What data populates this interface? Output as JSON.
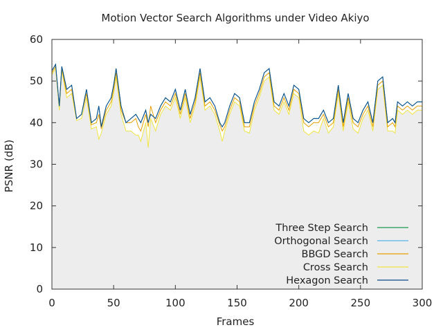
{
  "chart_data": {
    "type": "line",
    "title": "Motion Vector Search Algorithms under Video Akiyo",
    "xlabel": "Frames",
    "ylabel": "PSNR (dB)",
    "xlim": [
      0,
      300
    ],
    "ylim": [
      0,
      60
    ],
    "x_ticks": [
      "0",
      "50",
      "100",
      "150",
      "200",
      "250",
      "300"
    ],
    "y_ticks": [
      "0",
      "10",
      "20",
      "30",
      "40",
      "50",
      "60"
    ],
    "grid": false,
    "legend_position": "bottom-right",
    "x": [
      0,
      3,
      6,
      8,
      12,
      16,
      20,
      24,
      28,
      32,
      36,
      38,
      40,
      44,
      48,
      50,
      52,
      56,
      60,
      64,
      68,
      70,
      72,
      76,
      78,
      80,
      84,
      88,
      92,
      96,
      100,
      104,
      108,
      112,
      116,
      120,
      124,
      128,
      132,
      136,
      138,
      140,
      144,
      148,
      152,
      156,
      160,
      164,
      168,
      172,
      176,
      180,
      184,
      188,
      192,
      196,
      200,
      204,
      208,
      212,
      216,
      220,
      224,
      228,
      232,
      236,
      240,
      244,
      248,
      252,
      256,
      260,
      264,
      268,
      272,
      276,
      278,
      280,
      284,
      288,
      292,
      296,
      300
    ],
    "series": [
      {
        "name": "Three Step Search",
        "color": "#1a9850",
        "values": [
          52.5,
          54,
          44,
          53.5,
          48,
          49,
          41,
          42,
          48,
          40,
          41,
          44,
          39,
          44,
          46,
          49,
          53,
          44,
          40,
          41,
          42,
          41,
          40,
          43,
          40,
          42,
          41,
          44,
          46,
          45,
          48,
          43,
          48,
          42,
          46,
          53,
          45,
          46,
          44,
          40,
          39,
          40,
          44,
          47,
          46,
          40,
          40,
          45,
          48,
          52,
          53,
          45,
          44,
          47,
          44,
          49,
          48,
          41,
          40,
          41,
          41,
          43,
          40,
          41,
          49,
          40,
          47,
          41,
          40,
          43,
          45,
          40,
          50,
          51,
          40,
          41,
          40,
          45,
          44,
          45,
          44,
          45,
          45
        ]
      },
      {
        "name": "Orthogonal Search",
        "color": "#56b4e9",
        "values": [
          52.5,
          54,
          44,
          53.5,
          48,
          49,
          41,
          42,
          48,
          40,
          41,
          44,
          39,
          44,
          46,
          49,
          53,
          44,
          40,
          41,
          42,
          41,
          40,
          43,
          40,
          42,
          41,
          44,
          46,
          45,
          48,
          43,
          48,
          42,
          46,
          53,
          45,
          46,
          44,
          40,
          39,
          40,
          44,
          47,
          46,
          40,
          40,
          45,
          48,
          52,
          53,
          45,
          44,
          47,
          44,
          49,
          48,
          41,
          40,
          41,
          41,
          43,
          40,
          41,
          49,
          40,
          47,
          41,
          40,
          43,
          45,
          40,
          50,
          51,
          40,
          41,
          40,
          45,
          44,
          45,
          44,
          45,
          45
        ]
      },
      {
        "name": "BBGD Search",
        "color": "#e69f00",
        "values": [
          52,
          53.5,
          44,
          53,
          47,
          48,
          41,
          42,
          47,
          39.5,
          40,
          42,
          38.5,
          43,
          45,
          48,
          52,
          43,
          40,
          40,
          41,
          39,
          38,
          42,
          39,
          44,
          40,
          43,
          45,
          44,
          47,
          42,
          47,
          41,
          45,
          52,
          44,
          45,
          43,
          39.5,
          38,
          39,
          43,
          46,
          45,
          39,
          39,
          44,
          47,
          51,
          52,
          44,
          43,
          46,
          43,
          48,
          47,
          40,
          39,
          40,
          40,
          42,
          39,
          40,
          48,
          39,
          46,
          40,
          39,
          42,
          44,
          39,
          49,
          50,
          39,
          40,
          39,
          44,
          43,
          44,
          43,
          44,
          44
        ]
      },
      {
        "name": "Cross Search",
        "color": "#f0e442",
        "values": [
          51.5,
          53,
          43,
          52.5,
          46,
          47,
          40.5,
          41,
          46,
          38.5,
          39,
          36,
          37.5,
          42,
          44,
          47,
          51,
          42,
          38,
          38,
          37,
          37,
          35.5,
          40,
          34,
          41,
          38,
          42,
          44,
          43,
          46,
          41,
          46,
          40,
          44,
          51,
          43,
          44,
          42,
          38,
          35.5,
          38,
          42,
          45,
          44,
          38,
          37.5,
          43,
          46,
          50,
          51,
          43,
          42,
          45,
          42,
          47,
          46,
          38,
          37,
          38,
          37.5,
          41,
          37.5,
          39,
          47,
          38,
          45,
          38.5,
          37.5,
          41,
          43,
          38,
          48,
          49,
          38,
          38,
          37.5,
          43,
          42,
          43,
          42,
          43,
          43
        ]
      },
      {
        "name": "Hexagon Search",
        "color": "#0b4a8a",
        "values": [
          52.5,
          54,
          44,
          53.5,
          48,
          49,
          41,
          42,
          48,
          40,
          41,
          44,
          39,
          44,
          46,
          49,
          53,
          44,
          40,
          41,
          42,
          41,
          40,
          43,
          40,
          42,
          41,
          44,
          46,
          45,
          48,
          43,
          48,
          42,
          46,
          53,
          45,
          46,
          44,
          40,
          39,
          40,
          44,
          47,
          46,
          40,
          40,
          45,
          48,
          52,
          53,
          45,
          44,
          47,
          44,
          49,
          48,
          41,
          40,
          41,
          41,
          43,
          40,
          41,
          49,
          40,
          47,
          41,
          40,
          43,
          45,
          40,
          50,
          51,
          40,
          41,
          40,
          45,
          44,
          45,
          44,
          45,
          45
        ]
      }
    ]
  }
}
